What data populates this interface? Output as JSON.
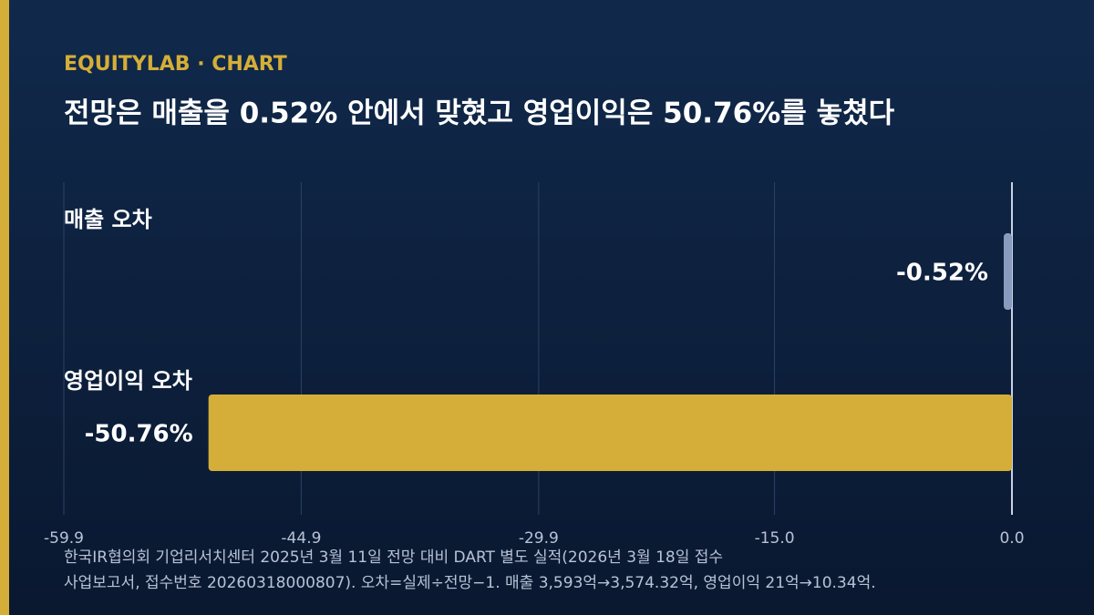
{
  "brand": "EQUITYLAB · CHART",
  "chart_data": {
    "type": "bar",
    "title": "전망은 매출을 0.52% 안에서 맞혔고 영업이익은 50.76%를 놓쳤다",
    "categories": [
      "매출 오차",
      "영업이익 오차"
    ],
    "values": [
      -0.52,
      -50.76
    ],
    "value_labels": [
      "-0.52%",
      "-50.76%"
    ],
    "colors": [
      "#8a9bc0",
      "#d4ae38"
    ],
    "xlim": [
      -59.9,
      0
    ],
    "xticks": [
      -59.9,
      -44.9,
      -29.9,
      {
        "value": -15,
        "label": "-15.0"
      },
      {
        "value": 0,
        "label": "0.0"
      }
    ],
    "grid": true
  },
  "source": [
    "한국IR협의회 기업리서치센터 2025년 3월 11일 전망 대비 DART 별도 실적(2026년 3월 18일 접수",
    "사업보고서, 접수번호 20260318000807). 오차=실제÷전망−1. 매출 3,593억→3,574.32억, 영업이익 21억→10.34억."
  ]
}
